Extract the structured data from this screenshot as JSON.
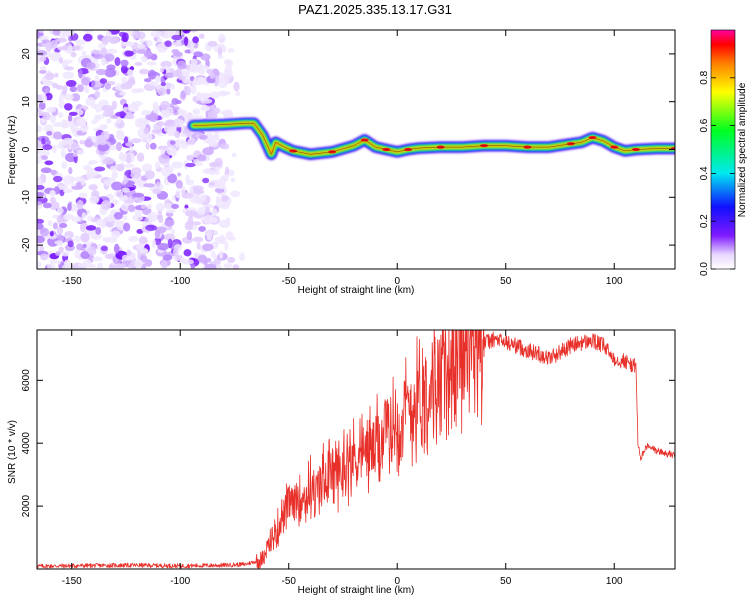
{
  "figure": {
    "title": "PAZ1.2025.335.13.17.G31"
  },
  "chart_data": [
    {
      "type": "heatmap",
      "name": "spectrogram",
      "xlabel": "Height of straight line (km)",
      "ylabel": "Frequency (Hz)",
      "xlim": [
        -166,
        128
      ],
      "ylim": [
        -25,
        25
      ],
      "xticks": [
        -150,
        -100,
        -50,
        0,
        50,
        100
      ],
      "yticks": [
        -20,
        -10,
        0,
        10,
        20
      ],
      "colorbar": {
        "label": "Normalized spectral amplitude",
        "range": [
          0.0,
          1.0
        ],
        "ticks": [
          0.0,
          0.2,
          0.4,
          0.6,
          0.8
        ]
      },
      "noise_region_x": [
        -166,
        -71
      ],
      "ridge": {
        "x": [
          -94,
          -80,
          -70,
          -66,
          -62,
          -58,
          -56,
          -52,
          -48,
          -40,
          -30,
          -20,
          -15,
          -10,
          -5,
          0,
          5,
          10,
          20,
          30,
          40,
          50,
          60,
          70,
          80,
          85,
          90,
          95,
          100,
          105,
          110,
          120,
          128
        ],
        "freq": [
          5,
          5.2,
          5.5,
          5.5,
          3,
          -1,
          1.5,
          0.5,
          -0.3,
          -1,
          -0.5,
          0.8,
          2,
          0.5,
          0,
          -0.5,
          0,
          0.3,
          0.5,
          0.5,
          0.8,
          0.8,
          0.5,
          0.5,
          1.2,
          1.5,
          2.5,
          1.8,
          0.5,
          -0.3,
          0,
          0.2,
          0.2
        ]
      }
    },
    {
      "type": "line",
      "name": "snr",
      "xlabel": "Height of straight line (km)",
      "ylabel": "SNR (10 * v/v)",
      "xlim": [
        -166,
        128
      ],
      "ylim": [
        0,
        7600
      ],
      "xticks": [
        -150,
        -100,
        -50,
        0,
        50,
        100
      ],
      "yticks": [
        2000,
        4000,
        6000
      ],
      "color": "#e8302a",
      "series": [
        {
          "name": "SNR",
          "x": [
            -166,
            -140,
            -120,
            -100,
            -80,
            -70,
            -62,
            -58,
            -55,
            -52,
            -50,
            -48,
            -45,
            -42,
            -40,
            -37,
            -35,
            -32,
            -30,
            -28,
            -25,
            -22,
            -20,
            -18,
            -15,
            -12,
            -10,
            -8,
            -5,
            -2,
            0,
            2,
            5,
            8,
            10,
            15,
            20,
            25,
            30,
            35,
            40,
            45,
            50,
            55,
            60,
            65,
            70,
            75,
            80,
            85,
            90,
            95,
            100,
            105,
            108,
            110,
            111,
            112,
            115,
            120,
            128
          ],
          "y": [
            90,
            110,
            120,
            100,
            120,
            150,
            300,
            900,
            1300,
            1800,
            2100,
            2000,
            2400,
            2300,
            2600,
            2500,
            2800,
            3000,
            3100,
            3000,
            3300,
            3400,
            3500,
            3700,
            3700,
            3800,
            3900,
            4100,
            4300,
            4500,
            4700,
            4900,
            5000,
            5300,
            5500,
            5900,
            6200,
            6600,
            6900,
            7100,
            7200,
            7300,
            7200,
            7100,
            6950,
            6850,
            6700,
            6900,
            7100,
            7200,
            7250,
            7100,
            6700,
            6600,
            6500,
            6400,
            4000,
            3500,
            3900,
            3750,
            3600
          ]
        }
      ]
    }
  ]
}
